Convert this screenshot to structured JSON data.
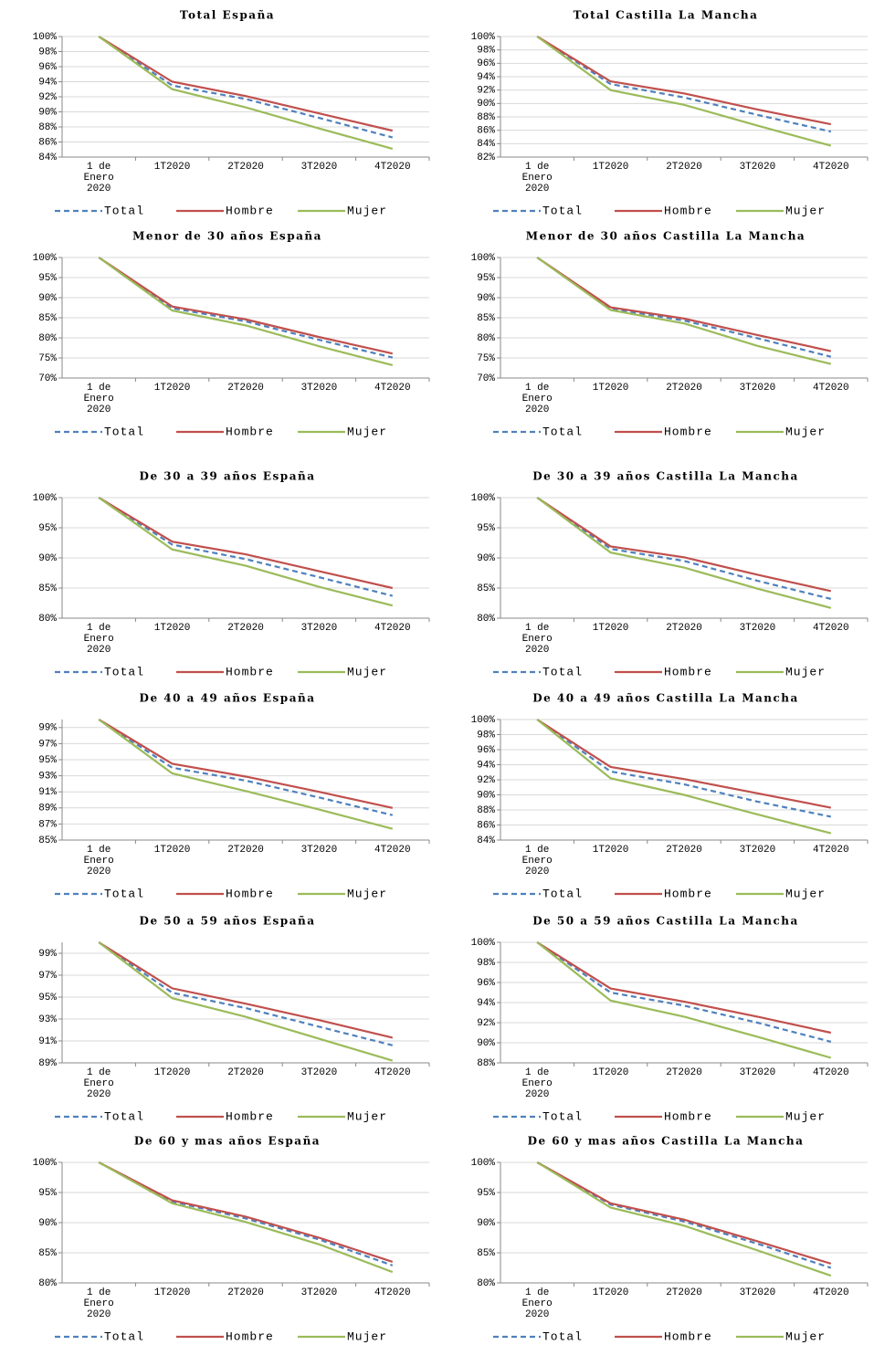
{
  "chart_data": [
    {
      "type": "line",
      "title": "Total España",
      "categories": [
        "1 de Enero 2020",
        "1T2020",
        "2T2020",
        "3T2020",
        "4T2020"
      ],
      "ylim": [
        84,
        100
      ],
      "yticks": [
        {
          "value": 84,
          "label": "84%"
        },
        {
          "value": 86,
          "label": "86%"
        },
        {
          "value": 88,
          "label": "88%"
        },
        {
          "value": 90,
          "label": "90%"
        },
        {
          "value": 92,
          "label": "92%"
        },
        {
          "value": 94,
          "label": "94%"
        },
        {
          "value": 96,
          "label": "96%"
        },
        {
          "value": 98,
          "label": "98%"
        },
        {
          "value": 100,
          "label": "100%"
        }
      ],
      "grid": true,
      "legend": "bottom",
      "series": [
        {
          "name": "Total",
          "color": "#4f81bd",
          "dash": true,
          "values": [
            100,
            93.5,
            91.7,
            89.2,
            86.6
          ]
        },
        {
          "name": "Hombre",
          "color": "#c0504d",
          "values": [
            100,
            94,
            92.1,
            89.8,
            87.5
          ]
        },
        {
          "name": "Mujer",
          "color": "#9bbb59",
          "values": [
            100,
            93,
            90.6,
            87.8,
            85.1
          ]
        }
      ]
    },
    {
      "type": "line",
      "title": "Total Castilla La Mancha",
      "categories": [
        "1 de Enero 2020",
        "1T2020",
        "2T2020",
        "3T2020",
        "4T2020"
      ],
      "ylim": [
        82,
        100
      ],
      "yticks": [
        {
          "value": 82,
          "label": "82%"
        },
        {
          "value": 84,
          "label": "84%"
        },
        {
          "value": 86,
          "label": "86%"
        },
        {
          "value": 88,
          "label": "88%"
        },
        {
          "value": 90,
          "label": "90%"
        },
        {
          "value": 92,
          "label": "92%"
        },
        {
          "value": 94,
          "label": "94%"
        },
        {
          "value": 96,
          "label": "96%"
        },
        {
          "value": 98,
          "label": "98%"
        },
        {
          "value": 100,
          "label": "100%"
        }
      ],
      "grid": true,
      "legend": "bottom",
      "series": [
        {
          "name": "Total",
          "color": "#4f81bd",
          "dash": true,
          "values": [
            100,
            92.9,
            90.9,
            88.3,
            85.8
          ]
        },
        {
          "name": "Hombre",
          "color": "#c0504d",
          "values": [
            100,
            93.3,
            91.5,
            89.1,
            86.9
          ]
        },
        {
          "name": "Mujer",
          "color": "#9bbb59",
          "values": [
            100,
            92,
            89.8,
            86.7,
            83.7
          ]
        }
      ]
    },
    {
      "type": "line",
      "title": "Menor de 30 años España",
      "categories": [
        "1 de Enero 2020",
        "1T2020",
        "2T2020",
        "3T2020",
        "4T2020"
      ],
      "ylim": [
        70,
        100
      ],
      "yticks": [
        {
          "value": 70,
          "label": "70%"
        },
        {
          "value": 75,
          "label": "75%"
        },
        {
          "value": 80,
          "label": "80%"
        },
        {
          "value": 85,
          "label": "85%"
        },
        {
          "value": 90,
          "label": "90%"
        },
        {
          "value": 95,
          "label": "95%"
        },
        {
          "value": 100,
          "label": "100%"
        }
      ],
      "grid": true,
      "legend": "bottom",
      "series": [
        {
          "name": "Total",
          "color": "#4f81bd",
          "dash": true,
          "values": [
            100,
            87.4,
            84.1,
            79.5,
            75.1
          ]
        },
        {
          "name": "Hombre",
          "color": "#c0504d",
          "values": [
            100,
            87.8,
            84.6,
            80.2,
            76.1
          ]
        },
        {
          "name": "Mujer",
          "color": "#9bbb59",
          "values": [
            100,
            86.8,
            83.1,
            77.9,
            73.2
          ]
        }
      ]
    },
    {
      "type": "line",
      "title": "Menor de 30 años Castilla La Mancha",
      "categories": [
        "1 de Enero 2020",
        "1T2020",
        "2T2020",
        "3T2020",
        "4T2020"
      ],
      "ylim": [
        70,
        100
      ],
      "yticks": [
        {
          "value": 70,
          "label": "70%"
        },
        {
          "value": 75,
          "label": "75%"
        },
        {
          "value": 80,
          "label": "80%"
        },
        {
          "value": 85,
          "label": "85%"
        },
        {
          "value": 90,
          "label": "90%"
        },
        {
          "value": 95,
          "label": "95%"
        },
        {
          "value": 100,
          "label": "100%"
        }
      ],
      "grid": true,
      "legend": "bottom",
      "series": [
        {
          "name": "Total",
          "color": "#4f81bd",
          "dash": true,
          "values": [
            100,
            87.3,
            84.3,
            79.9,
            75.3
          ]
        },
        {
          "name": "Hombre",
          "color": "#c0504d",
          "values": [
            100,
            87.6,
            84.8,
            80.7,
            76.7
          ]
        },
        {
          "name": "Mujer",
          "color": "#9bbb59",
          "values": [
            100,
            86.9,
            83.6,
            78,
            73.5
          ]
        }
      ]
    },
    {
      "type": "line",
      "title": "De 30 a 39 años España",
      "categories": [
        "1 de Enero 2020",
        "1T2020",
        "2T2020",
        "3T2020",
        "4T2020"
      ],
      "ylim": [
        80,
        100
      ],
      "yticks": [
        {
          "value": 80,
          "label": "80%"
        },
        {
          "value": 85,
          "label": "85%"
        },
        {
          "value": 90,
          "label": "90%"
        },
        {
          "value": 95,
          "label": "95%"
        },
        {
          "value": 100,
          "label": "100%"
        }
      ],
      "grid": true,
      "legend": "bottom",
      "series": [
        {
          "name": "Total",
          "color": "#4f81bd",
          "dash": true,
          "values": [
            100,
            92.2,
            89.8,
            86.8,
            83.7
          ]
        },
        {
          "name": "Hombre",
          "color": "#c0504d",
          "values": [
            100,
            92.7,
            90.6,
            87.8,
            85
          ]
        },
        {
          "name": "Mujer",
          "color": "#9bbb59",
          "values": [
            100,
            91.4,
            88.7,
            85.2,
            82.1
          ]
        }
      ]
    },
    {
      "type": "line",
      "title": "De 30 a 39 años Castilla La Mancha",
      "categories": [
        "1 de Enero 2020",
        "1T2020",
        "2T2020",
        "3T2020",
        "4T2020"
      ],
      "ylim": [
        80,
        100
      ],
      "yticks": [
        {
          "value": 80,
          "label": "80%"
        },
        {
          "value": 85,
          "label": "85%"
        },
        {
          "value": 90,
          "label": "90%"
        },
        {
          "value": 95,
          "label": "95%"
        },
        {
          "value": 100,
          "label": "100%"
        }
      ],
      "grid": true,
      "legend": "bottom",
      "series": [
        {
          "name": "Total",
          "color": "#4f81bd",
          "dash": true,
          "values": [
            100,
            91.5,
            89.5,
            86.2,
            83.2
          ]
        },
        {
          "name": "Hombre",
          "color": "#c0504d",
          "values": [
            100,
            91.9,
            90.1,
            87.2,
            84.5
          ]
        },
        {
          "name": "Mujer",
          "color": "#9bbb59",
          "values": [
            100,
            90.9,
            88.4,
            84.9,
            81.7
          ]
        }
      ]
    },
    {
      "type": "line",
      "title": "De 40 a 49 años España",
      "categories": [
        "1 de Enero 2020",
        "1T2020",
        "2T2020",
        "3T2020",
        "4T2020"
      ],
      "ylim": [
        85,
        100
      ],
      "yticks": [
        {
          "value": 85,
          "label": "85%"
        },
        {
          "value": 87,
          "label": "87%"
        },
        {
          "value": 89,
          "label": "89%"
        },
        {
          "value": 91,
          "label": "91%"
        },
        {
          "value": 93,
          "label": "93%"
        },
        {
          "value": 95,
          "label": "95%"
        },
        {
          "value": 97,
          "label": "97%"
        },
        {
          "value": 99,
          "label": "99%"
        }
      ],
      "grid": true,
      "legend": "bottom",
      "series": [
        {
          "name": "Total",
          "color": "#4f81bd",
          "dash": true,
          "values": [
            100,
            94,
            92.4,
            90.3,
            88.1
          ]
        },
        {
          "name": "Hombre",
          "color": "#c0504d",
          "values": [
            100,
            94.5,
            92.9,
            91,
            89
          ]
        },
        {
          "name": "Mujer",
          "color": "#9bbb59",
          "values": [
            100,
            93.3,
            91.1,
            88.8,
            86.4
          ]
        }
      ]
    },
    {
      "type": "line",
      "title": "De 40 a 49 años Castilla La Mancha",
      "categories": [
        "1 de Enero 2020",
        "1T2020",
        "2T2020",
        "3T2020",
        "4T2020"
      ],
      "ylim": [
        84,
        100
      ],
      "yticks": [
        {
          "value": 84,
          "label": "84%"
        },
        {
          "value": 86,
          "label": "86%"
        },
        {
          "value": 88,
          "label": "88%"
        },
        {
          "value": 90,
          "label": "90%"
        },
        {
          "value": 92,
          "label": "92%"
        },
        {
          "value": 94,
          "label": "94%"
        },
        {
          "value": 96,
          "label": "96%"
        },
        {
          "value": 98,
          "label": "98%"
        },
        {
          "value": 100,
          "label": "100%"
        }
      ],
      "grid": true,
      "legend": "bottom",
      "series": [
        {
          "name": "Total",
          "color": "#4f81bd",
          "dash": true,
          "values": [
            100,
            93.1,
            91.4,
            89.1,
            87.1
          ]
        },
        {
          "name": "Hombre",
          "color": "#c0504d",
          "values": [
            100,
            93.7,
            92.1,
            90.2,
            88.3
          ]
        },
        {
          "name": "Mujer",
          "color": "#9bbb59",
          "values": [
            100,
            92.2,
            90,
            87.4,
            84.9
          ]
        }
      ]
    },
    {
      "type": "line",
      "title": "De 50 a 59 años España",
      "categories": [
        "1 de Enero 2020",
        "1T2020",
        "2T2020",
        "3T2020",
        "4T2020"
      ],
      "ylim": [
        89,
        100
      ],
      "yticks": [
        {
          "value": 89,
          "label": "89%"
        },
        {
          "value": 91,
          "label": "91%"
        },
        {
          "value": 93,
          "label": "93%"
        },
        {
          "value": 95,
          "label": "95%"
        },
        {
          "value": 97,
          "label": "97%"
        },
        {
          "value": 99,
          "label": "99%"
        }
      ],
      "grid": true,
      "legend": "bottom",
      "series": [
        {
          "name": "Total",
          "color": "#4f81bd",
          "dash": true,
          "values": [
            100,
            95.4,
            94,
            92.3,
            90.6
          ]
        },
        {
          "name": "Hombre",
          "color": "#c0504d",
          "values": [
            100,
            95.8,
            94.4,
            92.9,
            91.3
          ]
        },
        {
          "name": "Mujer",
          "color": "#9bbb59",
          "values": [
            100,
            94.9,
            93.2,
            91.2,
            89.2
          ]
        }
      ]
    },
    {
      "type": "line",
      "title": "De 50 a 59 años Castilla La Mancha",
      "categories": [
        "1 de Enero 2020",
        "1T2020",
        "2T2020",
        "3T2020",
        "4T2020"
      ],
      "ylim": [
        88,
        100
      ],
      "yticks": [
        {
          "value": 88,
          "label": "88%"
        },
        {
          "value": 90,
          "label": "90%"
        },
        {
          "value": 92,
          "label": "92%"
        },
        {
          "value": 94,
          "label": "94%"
        },
        {
          "value": 96,
          "label": "96%"
        },
        {
          "value": 98,
          "label": "98%"
        },
        {
          "value": 100,
          "label": "100%"
        }
      ],
      "grid": true,
      "legend": "bottom",
      "series": [
        {
          "name": "Total",
          "color": "#4f81bd",
          "dash": true,
          "values": [
            100,
            95,
            93.7,
            92,
            90.1
          ]
        },
        {
          "name": "Hombre",
          "color": "#c0504d",
          "values": [
            100,
            95.4,
            94.1,
            92.6,
            91
          ]
        },
        {
          "name": "Mujer",
          "color": "#9bbb59",
          "values": [
            100,
            94.2,
            92.6,
            90.6,
            88.5
          ]
        }
      ]
    },
    {
      "type": "line",
      "title": "De 60 y mas años España",
      "categories": [
        "1 de Enero 2020",
        "1T2020",
        "2T2020",
        "3T2020",
        "4T2020"
      ],
      "ylim": [
        80,
        100
      ],
      "yticks": [
        {
          "value": 80,
          "label": "80%"
        },
        {
          "value": 85,
          "label": "85%"
        },
        {
          "value": 90,
          "label": "90%"
        },
        {
          "value": 95,
          "label": "95%"
        },
        {
          "value": 100,
          "label": "100%"
        }
      ],
      "grid": true,
      "legend": "bottom",
      "series": [
        {
          "name": "Total",
          "color": "#4f81bd",
          "dash": true,
          "values": [
            100,
            93.5,
            90.7,
            87.2,
            82.9
          ]
        },
        {
          "name": "Hombre",
          "color": "#c0504d",
          "values": [
            100,
            93.7,
            91,
            87.5,
            83.5
          ]
        },
        {
          "name": "Mujer",
          "color": "#9bbb59",
          "values": [
            100,
            93.2,
            90.1,
            86.4,
            81.8
          ]
        }
      ]
    },
    {
      "type": "line",
      "title": "De 60 y mas años Castilla La Mancha",
      "categories": [
        "1 de Enero 2020",
        "1T2020",
        "2T2020",
        "3T2020",
        "4T2020"
      ],
      "ylim": [
        80,
        100
      ],
      "yticks": [
        {
          "value": 80,
          "label": "80%"
        },
        {
          "value": 85,
          "label": "85%"
        },
        {
          "value": 90,
          "label": "90%"
        },
        {
          "value": 95,
          "label": "95%"
        },
        {
          "value": 100,
          "label": "100%"
        }
      ],
      "grid": true,
      "legend": "bottom",
      "series": [
        {
          "name": "Total",
          "color": "#4f81bd",
          "dash": true,
          "values": [
            100,
            93,
            90.2,
            86.5,
            82.5
          ]
        },
        {
          "name": "Hombre",
          "color": "#c0504d",
          "values": [
            100,
            93.2,
            90.5,
            86.9,
            83.2
          ]
        },
        {
          "name": "Mujer",
          "color": "#9bbb59",
          "values": [
            100,
            92.5,
            89.5,
            85.4,
            81.2
          ]
        }
      ]
    }
  ]
}
